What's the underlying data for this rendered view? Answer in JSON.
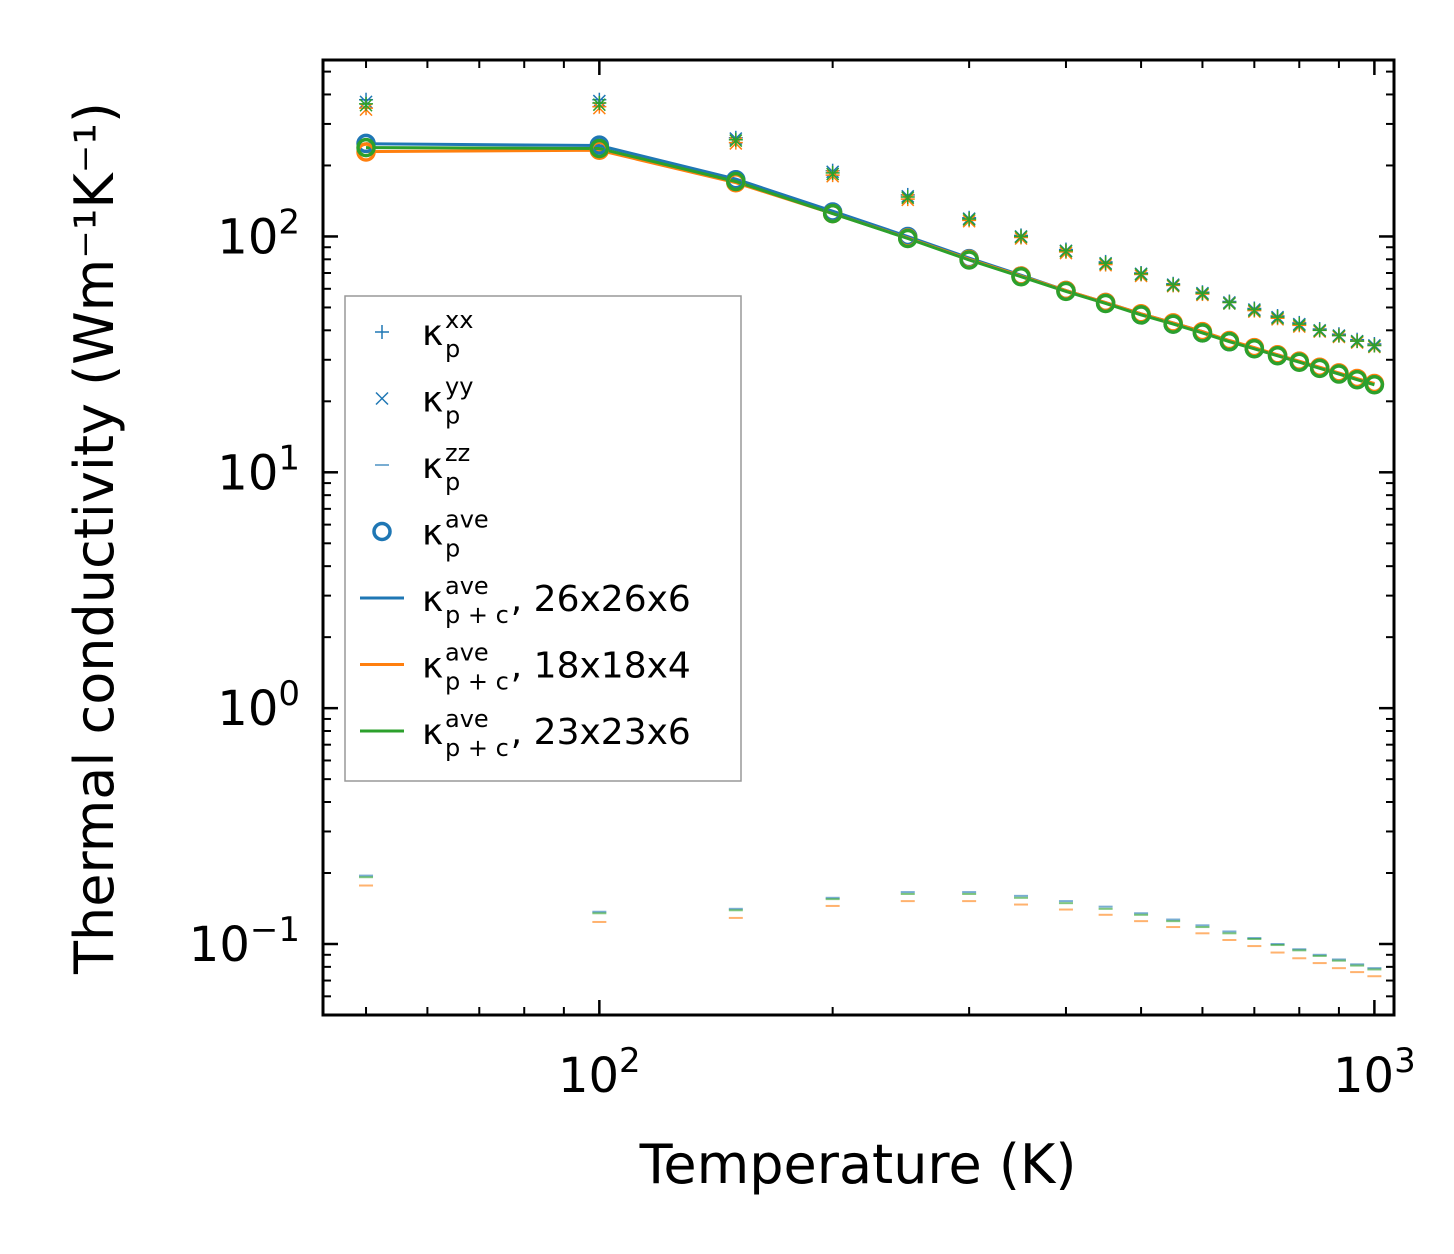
{
  "chart_data": {
    "type": "scatter",
    "title": "",
    "xlabel": "Temperature (K)",
    "ylabel": "Thermal conductivity (Wm⁻¹K⁻¹)",
    "xscale": "log",
    "yscale": "log",
    "xlim": [
      44,
      1060
    ],
    "ylim": [
      0.05,
      560
    ],
    "x_ticks": [
      {
        "value": 100,
        "base": "10",
        "exp": "2"
      },
      {
        "value": 1000,
        "base": "10",
        "exp": "3"
      }
    ],
    "y_ticks": [
      {
        "value": 0.1,
        "base": "10",
        "exp": "−1"
      },
      {
        "value": 1,
        "base": "10",
        "exp": "0"
      },
      {
        "value": 10,
        "base": "10",
        "exp": "1"
      },
      {
        "value": 100,
        "base": "10",
        "exp": "2"
      }
    ],
    "legend_position": "center-left",
    "temperatures": [
      50,
      100,
      150,
      200,
      250,
      300,
      350,
      400,
      450,
      500,
      550,
      600,
      650,
      700,
      750,
      800,
      850,
      900,
      950,
      1000
    ],
    "colors": {
      "blue": "#1f77b4",
      "orange": "#ff7f0e",
      "green": "#2ca02c"
    },
    "legend": [
      {
        "id": "kxx",
        "base": "κ",
        "sub": "p",
        "sup": "xx",
        "suffix": "",
        "marker": "plus",
        "color": "#1f77b4"
      },
      {
        "id": "kyy",
        "base": "κ",
        "sub": "p",
        "sup": "yy",
        "suffix": "",
        "marker": "x",
        "color": "#1f77b4"
      },
      {
        "id": "kzz",
        "base": "κ",
        "sub": "p",
        "sup": "zz",
        "suffix": "",
        "marker": "dash",
        "color": "#1f77b4"
      },
      {
        "id": "kave",
        "base": "κ",
        "sub": "p",
        "sup": "ave",
        "suffix": "",
        "marker": "circle",
        "color": "#1f77b4"
      },
      {
        "id": "line1",
        "base": "κ",
        "sub": "p + c",
        "sup": "ave",
        "suffix": ", 26x26x6",
        "marker": "line",
        "color": "#1f77b4"
      },
      {
        "id": "line2",
        "base": "κ",
        "sub": "p + c",
        "sup": "ave",
        "suffix": ", 18x18x4",
        "marker": "line",
        "color": "#ff7f0e"
      },
      {
        "id": "line3",
        "base": "κ",
        "sub": "p + c",
        "sup": "ave",
        "suffix": ", 23x23x6",
        "marker": "line",
        "color": "#2ca02c"
      }
    ],
    "series": [
      {
        "name": "26x26x6",
        "color": "#1f77b4",
        "kxx": [
          380,
          380,
          262,
          190,
          150,
          120,
          101,
          88,
          78,
          70,
          63,
          58,
          53,
          49.5,
          46,
          43,
          40.5,
          38.5,
          36.5,
          35
        ],
        "kyy": [
          372,
          375,
          260,
          188,
          148,
          119,
          100,
          87,
          77,
          69.5,
          62.5,
          57.5,
          52.5,
          49,
          45.5,
          42.5,
          40,
          38,
          36,
          34.5
        ],
        "kzz": [
          0.195,
          0.137,
          0.141,
          0.157,
          0.166,
          0.166,
          0.16,
          0.152,
          0.144,
          0.135,
          0.127,
          0.12,
          0.113,
          0.106,
          0.1,
          0.095,
          0.09,
          0.086,
          0.082,
          0.079
        ],
        "kave": [
          248,
          244,
          174,
          127,
          100,
          80.5,
          68,
          59,
          52.5,
          46.5,
          42.5,
          39,
          35.8,
          33.5,
          31.3,
          29.4,
          27.7,
          26.2,
          24.8,
          23.6
        ],
        "kpc": [
          247,
          243,
          175,
          128,
          100,
          81,
          68.5,
          59,
          52.5,
          47,
          43,
          39.5,
          36,
          33.5,
          31.5,
          29.5,
          27.8,
          26.3,
          24.9,
          23.7
        ]
      },
      {
        "name": "18x18x4",
        "color": "#ff7f0e",
        "kxx": [
          350,
          355,
          250,
          182,
          144,
          117,
          99,
          86,
          76,
          69,
          62,
          57,
          52.5,
          48.5,
          45,
          42,
          40,
          38,
          36,
          34.5
        ],
        "kyy": [
          345,
          350,
          248,
          180,
          143,
          116,
          98,
          85,
          75.5,
          68,
          61.5,
          56.5,
          52,
          48,
          44.5,
          41.5,
          39.5,
          37.5,
          35.5,
          34
        ],
        "kzz": [
          0.177,
          0.124,
          0.129,
          0.145,
          0.152,
          0.152,
          0.147,
          0.14,
          0.133,
          0.125,
          0.118,
          0.111,
          0.104,
          0.098,
          0.092,
          0.087,
          0.083,
          0.079,
          0.076,
          0.073
        ],
        "kave": [
          228,
          232,
          169,
          125,
          98.5,
          80,
          68,
          59,
          52.5,
          47,
          43,
          39.5,
          36.2,
          33.8,
          31.5,
          29.6,
          27.9,
          26.4,
          25,
          23.8
        ],
        "kpc": [
          229,
          232,
          169,
          125,
          98.5,
          80,
          68,
          59,
          52.5,
          47,
          43,
          39.5,
          36.2,
          33.8,
          31.5,
          29.6,
          27.9,
          26.4,
          25,
          23.8
        ]
      },
      {
        "name": "23x23x6",
        "color": "#2ca02c",
        "kxx": [
          365,
          368,
          257,
          186,
          147,
          118.5,
          100,
          87,
          77,
          69.5,
          62.5,
          57.5,
          52.5,
          49,
          45.5,
          42.5,
          40,
          38,
          36,
          34.5
        ],
        "kyy": [
          360,
          362,
          255,
          184,
          146,
          118,
          99.5,
          86.5,
          76.5,
          69,
          62,
          57,
          52,
          48.5,
          45,
          42,
          39.8,
          37.8,
          35.8,
          34.2
        ],
        "kzz": [
          0.192,
          0.135,
          0.139,
          0.155,
          0.163,
          0.163,
          0.157,
          0.149,
          0.141,
          0.133,
          0.125,
          0.118,
          0.111,
          0.105,
          0.099,
          0.094,
          0.089,
          0.085,
          0.081,
          0.078
        ],
        "kave": [
          238,
          236,
          171,
          125,
          98,
          79.5,
          67.5,
          58.5,
          52,
          46.5,
          42.5,
          39,
          35.8,
          33.4,
          31.2,
          29.3,
          27.6,
          26.1,
          24.7,
          23.5
        ],
        "kpc": [
          238,
          236,
          171,
          125,
          98,
          79.5,
          67.5,
          58.5,
          52,
          46.5,
          42.5,
          39,
          35.8,
          33.4,
          31.2,
          29.3,
          27.6,
          26.1,
          24.7,
          23.5
        ]
      }
    ]
  }
}
